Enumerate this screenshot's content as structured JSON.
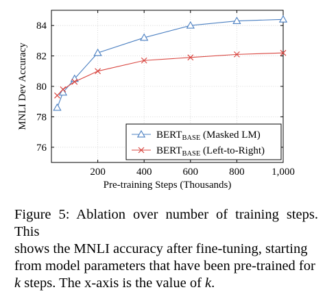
{
  "chart_data": {
    "type": "line",
    "xlabel": "Pre-training Steps (Thousands)",
    "ylabel": "MNLI Dev Accuracy",
    "xlim": [
      0,
      1000
    ],
    "ylim": [
      75,
      85
    ],
    "x_ticks": [
      200,
      400,
      600,
      800,
      1000
    ],
    "x_tick_labels": [
      "200",
      "400",
      "600",
      "800",
      "1,000"
    ],
    "y_ticks": [
      76,
      78,
      80,
      82,
      84
    ],
    "y_tick_labels": [
      "76",
      "78",
      "80",
      "82",
      "84"
    ],
    "grid": true,
    "legend_position": "bottom-right",
    "series": [
      {
        "name": "BERT",
        "name_sub": "BASE",
        "name_suffix": " (Masked LM)",
        "marker": "triangle",
        "color": "#4a7fc1",
        "x": [
          25,
          50,
          100,
          200,
          400,
          600,
          800,
          1000
        ],
        "y": [
          78.6,
          79.6,
          80.5,
          82.2,
          83.2,
          84.0,
          84.3,
          84.4
        ]
      },
      {
        "name": "BERT",
        "name_sub": "BASE",
        "name_suffix": " (Left-to-Right)",
        "marker": "cross",
        "color": "#d9453f",
        "x": [
          25,
          50,
          100,
          200,
          400,
          600,
          800,
          1000
        ],
        "y": [
          79.4,
          79.8,
          80.3,
          81.0,
          81.7,
          81.9,
          82.1,
          82.2
        ]
      }
    ]
  },
  "caption": {
    "line1": "Figure 5: Ablation over number of training steps. This",
    "line2": "shows the MNLI accuracy after fine-tuning, starting",
    "line3": "from model parameters that have been pre-trained for",
    "line4_k": "k",
    "line4_mid": " steps. The x-axis is the value of ",
    "line4_k2": "k",
    "line4_end": "."
  }
}
